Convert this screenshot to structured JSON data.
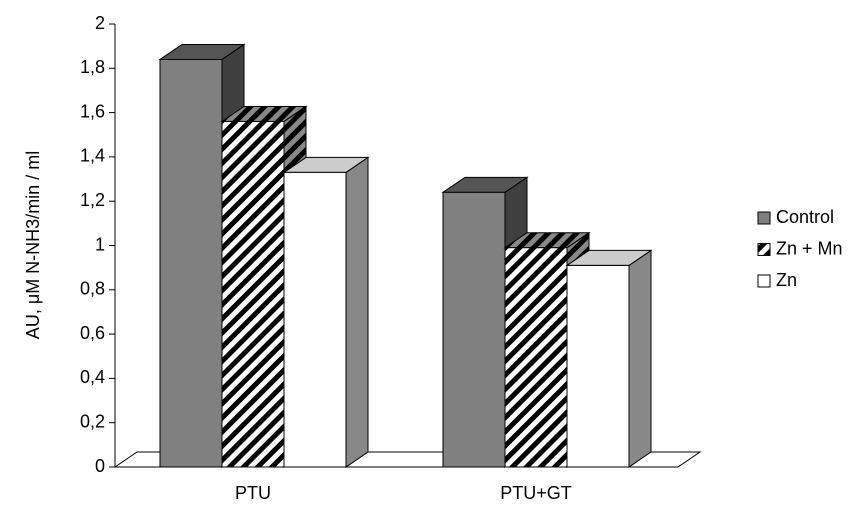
{
  "chart_data": {
    "type": "bar3d",
    "y_label": "AU, μM N-NH3/min / ml",
    "categories": [
      "PTU",
      "PTU+GT"
    ],
    "series": [
      {
        "name": "Control",
        "color": "#808080",
        "values": [
          1.84,
          1.24
        ]
      },
      {
        "name": "Zn + Mn",
        "color": "#ffffff",
        "pattern": "diagonal",
        "values": [
          1.56,
          0.99
        ]
      },
      {
        "name": "Zn",
        "color": "#ffffff",
        "values": [
          1.33,
          0.91
        ]
      }
    ],
    "ylim": [
      0,
      2
    ],
    "yticks": [
      0,
      {
        "value": 0.2,
        "label": "0,2"
      },
      {
        "value": 0.4,
        "label": "0,4"
      },
      {
        "value": 0.6,
        "label": "0,6"
      },
      {
        "value": 0.8,
        "label": "0,8"
      },
      1,
      {
        "value": 1.2,
        "label": "1,2"
      },
      {
        "value": 1.4,
        "label": "1,4"
      },
      {
        "value": 1.6,
        "label": "1,6"
      },
      {
        "value": 1.8,
        "label": "1,8"
      },
      2
    ],
    "legend": "right"
  }
}
